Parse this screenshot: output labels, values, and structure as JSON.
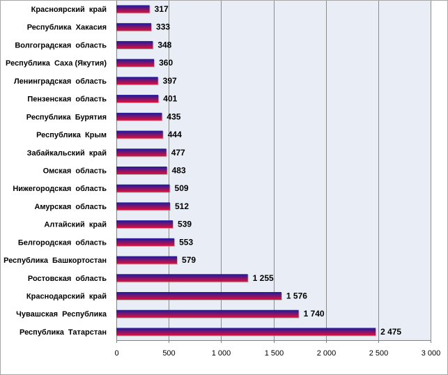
{
  "chart_data": {
    "type": "bar",
    "orientation": "horizontal",
    "title": "",
    "xlabel": "",
    "ylabel": "",
    "categories": [
      "Красноярский  край",
      "Республика  Хакасия",
      "Волгоградская  область",
      "Республика  Саха (Якутия)",
      "Ленинградская  область",
      "Пензенская  область",
      "Республика  Бурятия",
      "Республика  Крым",
      "Забайкальский  край",
      "Омская  область",
      "Нижегородская  область",
      "Амурская  область",
      "Алтайский  край",
      "Белгородская  область",
      "Республика  Башкортостан",
      "Ростовская  область",
      "Краснодарский  край",
      "Чувашская  Республика",
      "Республика  Татарстан"
    ],
    "values": [
      317,
      333,
      348,
      360,
      397,
      401,
      435,
      444,
      477,
      483,
      509,
      512,
      539,
      553,
      579,
      1255,
      1576,
      1740,
      2475
    ],
    "value_labels": [
      "317",
      "333",
      "348",
      "360",
      "397",
      "401",
      "435",
      "444",
      "477",
      "483",
      "509",
      "512",
      "539",
      "553",
      "579",
      "1 255",
      "1 576",
      "1 740",
      "2 475"
    ],
    "xlim": [
      0,
      3000
    ],
    "x_ticks": [
      0,
      500,
      1000,
      1500,
      2000,
      2500,
      3000
    ],
    "x_tick_labels": [
      "0",
      "500",
      "1 000",
      "1 500",
      "2 000",
      "2 500",
      "3 000"
    ],
    "grid": "vertical",
    "legend": "none",
    "colors": {
      "bar_top": "#1a1aa0",
      "bar_bottom": "#e0103a",
      "plot_background": "#e9edf6",
      "grid": "#8c8c8c",
      "frame": "#a6a6a6"
    }
  }
}
